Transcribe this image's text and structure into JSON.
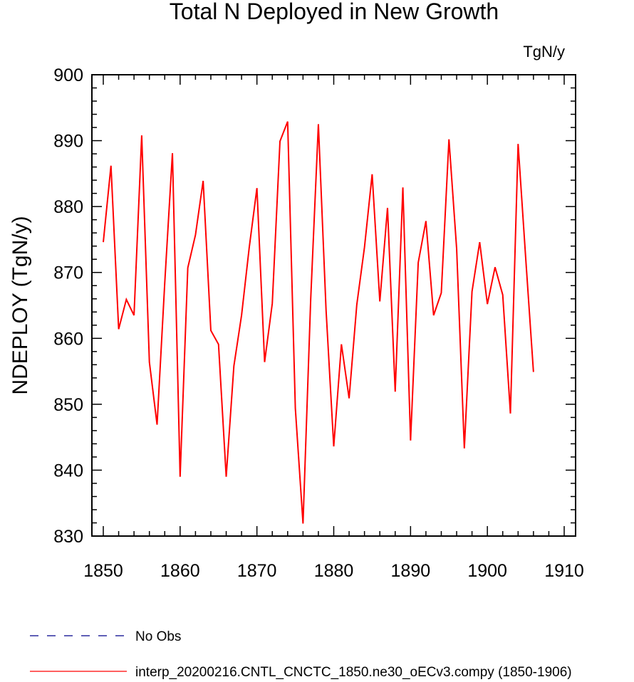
{
  "chart_data": {
    "type": "line",
    "title": "Total N Deployed in New Growth",
    "units": "TgN/y",
    "xlabel": "",
    "ylabel": "NDEPLOY  (TgN/y)",
    "xlim": [
      1848.5,
      1911.5
    ],
    "ylim": [
      830,
      900
    ],
    "xticks": [
      1850,
      1860,
      1870,
      1880,
      1890,
      1900,
      1910
    ],
    "yticks": [
      830,
      840,
      850,
      860,
      870,
      880,
      890,
      900
    ],
    "x_start": 1850,
    "series": [
      {
        "name": "interp_20200216.CNTL_CNCTC_1850.ne30_oECv3.compy (1850-1906)",
        "color": "#ff0000",
        "style": "solid",
        "values": [
          874.6,
          886.2,
          861.4,
          865.9,
          863.5,
          890.8,
          856.4,
          846.9,
          868.4,
          888.1,
          839.0,
          870.7,
          875.7,
          883.9,
          861.2,
          859.1,
          839.0,
          855.8,
          863.5,
          873.8,
          882.8,
          856.4,
          865.3,
          889.9,
          892.9,
          849.4,
          831.9,
          865.9,
          892.5,
          864.3,
          843.6,
          859.1,
          850.9,
          865.1,
          873.8,
          884.9,
          865.6,
          879.8,
          851.9,
          882.9,
          844.5,
          871.5,
          877.8,
          863.5,
          866.9,
          890.2,
          873.6,
          843.3,
          867.1,
          874.6,
          865.2,
          870.8,
          866.6,
          848.6,
          889.5,
          872.0,
          854.9
        ]
      }
    ],
    "legend": {
      "placement": "bottom-left",
      "entries": [
        {
          "label": "No Obs",
          "color": "#00008b",
          "style": "dashed"
        },
        {
          "label": "interp_20200216.CNTL_CNCTC_1850.ne30_oECv3.compy (1850-1906)",
          "color": "#ff0000",
          "style": "solid"
        }
      ]
    }
  }
}
